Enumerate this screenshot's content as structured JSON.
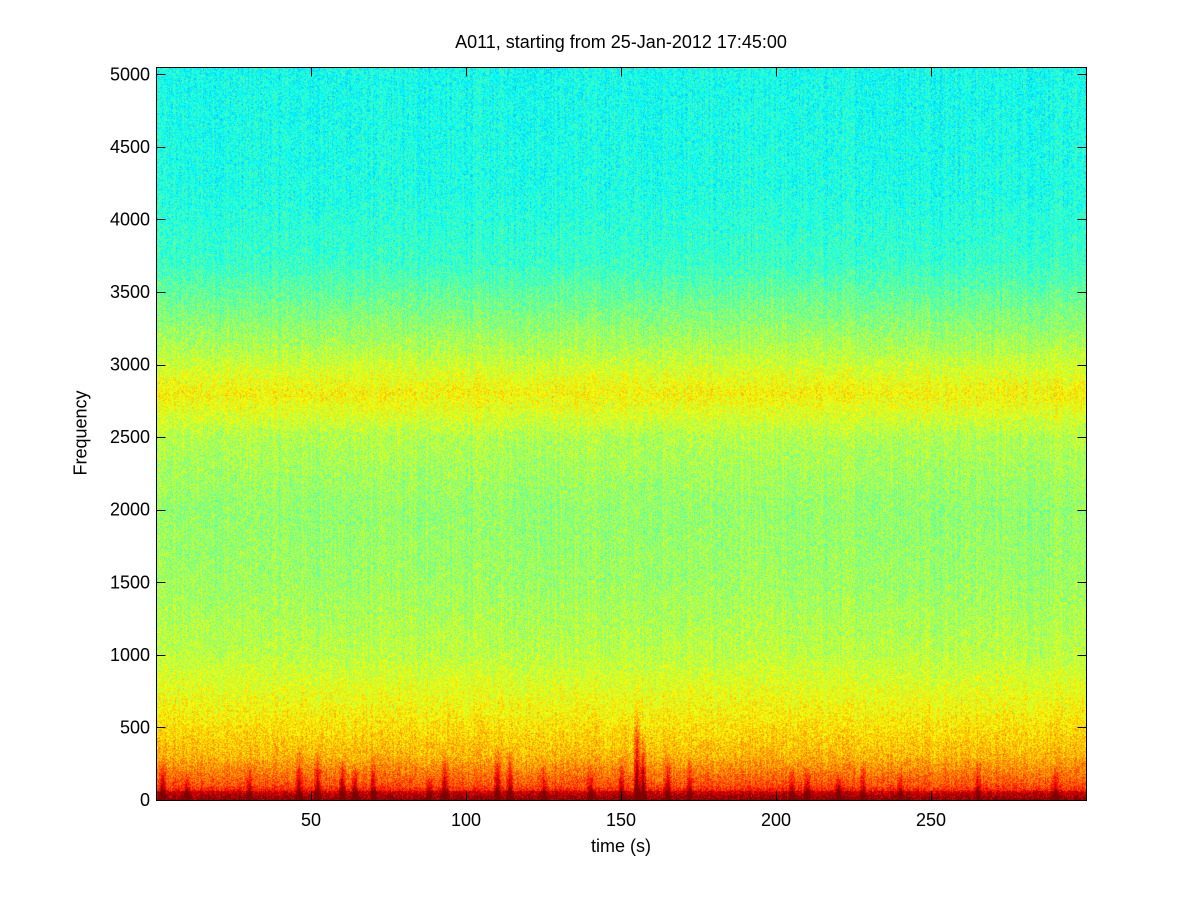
{
  "chart_data": {
    "type": "heatmap",
    "title": "A011, starting from 25-Jan-2012 17:45:00",
    "xlabel": "time (s)",
    "ylabel": "Frequency",
    "xlim": [
      0,
      300
    ],
    "ylim": [
      0,
      5050
    ],
    "x_ticks": [
      {
        "value": 50,
        "label": "50"
      },
      {
        "value": 100,
        "label": "100"
      },
      {
        "value": 150,
        "label": "150"
      },
      {
        "value": 200,
        "label": "200"
      },
      {
        "value": 250,
        "label": "250"
      }
    ],
    "y_ticks": [
      {
        "value": 0,
        "label": "0"
      },
      {
        "value": 500,
        "label": "500"
      },
      {
        "value": 1000,
        "label": "1000"
      },
      {
        "value": 1500,
        "label": "1500"
      },
      {
        "value": 2000,
        "label": "2000"
      },
      {
        "value": 2500,
        "label": "2500"
      },
      {
        "value": 3000,
        "label": "3000"
      },
      {
        "value": 3500,
        "label": "3500"
      },
      {
        "value": 4000,
        "label": "4000"
      },
      {
        "value": 4500,
        "label": "4500"
      },
      {
        "value": 5000,
        "label": "5000"
      }
    ],
    "colormap": "jet",
    "grid": false,
    "intensity_profile": [
      {
        "frequency": 0,
        "level": 0.95
      },
      {
        "frequency": 100,
        "level": 0.8
      },
      {
        "frequency": 300,
        "level": 0.7
      },
      {
        "frequency": 600,
        "level": 0.63
      },
      {
        "frequency": 1000,
        "level": 0.56
      },
      {
        "frequency": 1500,
        "level": 0.53
      },
      {
        "frequency": 2000,
        "level": 0.52
      },
      {
        "frequency": 2500,
        "level": 0.55
      },
      {
        "frequency": 2800,
        "level": 0.63
      },
      {
        "frequency": 3100,
        "level": 0.55
      },
      {
        "frequency": 3400,
        "level": 0.49
      },
      {
        "frequency": 3700,
        "level": 0.43
      },
      {
        "frequency": 4200,
        "level": 0.4
      },
      {
        "frequency": 5050,
        "level": 0.39
      }
    ],
    "transient_bursts": [
      {
        "time": 2,
        "max_frequency": 300,
        "strength": 0.8
      },
      {
        "time": 10,
        "max_frequency": 200,
        "strength": 0.7
      },
      {
        "time": 30,
        "max_frequency": 250,
        "strength": 0.6
      },
      {
        "time": 46,
        "max_frequency": 450,
        "strength": 0.7
      },
      {
        "time": 52,
        "max_frequency": 400,
        "strength": 0.85
      },
      {
        "time": 60,
        "max_frequency": 300,
        "strength": 0.8
      },
      {
        "time": 64,
        "max_frequency": 250,
        "strength": 0.85
      },
      {
        "time": 70,
        "max_frequency": 350,
        "strength": 0.7
      },
      {
        "time": 88,
        "max_frequency": 200,
        "strength": 0.6
      },
      {
        "time": 93,
        "max_frequency": 350,
        "strength": 0.8
      },
      {
        "time": 110,
        "max_frequency": 400,
        "strength": 0.85
      },
      {
        "time": 114,
        "max_frequency": 350,
        "strength": 0.75
      },
      {
        "time": 125,
        "max_frequency": 300,
        "strength": 0.6
      },
      {
        "time": 140,
        "max_frequency": 250,
        "strength": 0.6
      },
      {
        "time": 150,
        "max_frequency": 300,
        "strength": 0.7
      },
      {
        "time": 155,
        "max_frequency": 700,
        "strength": 1.0
      },
      {
        "time": 157,
        "max_frequency": 500,
        "strength": 1.0
      },
      {
        "time": 165,
        "max_frequency": 350,
        "strength": 0.7
      },
      {
        "time": 172,
        "max_frequency": 300,
        "strength": 0.6
      },
      {
        "time": 205,
        "max_frequency": 250,
        "strength": 0.7
      },
      {
        "time": 210,
        "max_frequency": 250,
        "strength": 0.75
      },
      {
        "time": 220,
        "max_frequency": 200,
        "strength": 0.85
      },
      {
        "time": 228,
        "max_frequency": 300,
        "strength": 0.6
      },
      {
        "time": 240,
        "max_frequency": 250,
        "strength": 0.55
      },
      {
        "time": 265,
        "max_frequency": 300,
        "strength": 0.55
      },
      {
        "time": 290,
        "max_frequency": 250,
        "strength": 0.55
      }
    ]
  }
}
